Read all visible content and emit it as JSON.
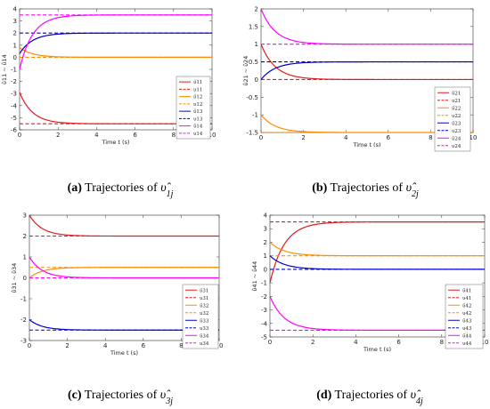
{
  "colors": {
    "c1": "#e41a1c",
    "c2": "#ff8c00",
    "c3": "#0000cd",
    "c4": "#ff00ff"
  },
  "chart_data": [
    {
      "type": "line",
      "caption": "(a) Trajectories of υ̂1j",
      "caption_tag": "(a)",
      "caption_text": " Trajectories of ",
      "caption_sym": "υ̂",
      "caption_sub": "1j",
      "xlabel": "Time t (s)",
      "ylabel": "υ̂11 ~ υ̂14",
      "xlim": [
        0,
        10
      ],
      "ylim": [
        -6,
        4
      ],
      "xticks": [
        "0",
        "2",
        "4",
        "6",
        "8",
        "10"
      ],
      "yticks": [
        "-6",
        "-5",
        "-4",
        "-3",
        "-2",
        "-1",
        "0",
        "1",
        "2",
        "3",
        "4"
      ],
      "legend_position": "center-right",
      "series": [
        {
          "name": "υ̂11",
          "color": "c1",
          "dashed": false,
          "start": -2.9,
          "final": -5.5
        },
        {
          "name": "υ11",
          "color": "c1",
          "dashed": true,
          "value": -5.5
        },
        {
          "name": "υ̂12",
          "color": "c2",
          "dashed": false,
          "start": 0.8,
          "final": 0
        },
        {
          "name": "υ12",
          "color": "c2",
          "dashed": true,
          "value": 0
        },
        {
          "name": "υ̂13",
          "color": "c3",
          "dashed": false,
          "start": 0.3,
          "final": 2
        },
        {
          "name": "υ13",
          "color": "c3",
          "dashed": true,
          "value": 2
        },
        {
          "name": "υ̂14",
          "color": "c4",
          "dashed": false,
          "start": -1,
          "final": 3.5
        },
        {
          "name": "υ14",
          "color": "c4",
          "dashed": true,
          "value": 3.5
        }
      ]
    },
    {
      "type": "line",
      "caption": "(b) Trajectories of υ̂2j",
      "caption_tag": "(b)",
      "caption_text": " Trajectories of ",
      "caption_sym": "υ̂",
      "caption_sub": "2j",
      "xlabel": "Time t (s)",
      "ylabel": "υ̂21 ~ υ̂24",
      "xlim": [
        0,
        10
      ],
      "ylim": [
        -1.5,
        2
      ],
      "xticks": [
        "0",
        "2",
        "4",
        "6",
        "8",
        "10"
      ],
      "yticks": [
        "-1.5",
        "-1",
        "-0.5",
        "0",
        "0.5",
        "1",
        "1.5",
        "2"
      ],
      "legend_position": "right",
      "series": [
        {
          "name": "υ̂21",
          "color": "c1",
          "dashed": false,
          "start": 1,
          "final": 0
        },
        {
          "name": "υ21",
          "color": "c1",
          "dashed": true,
          "value": 0
        },
        {
          "name": "υ̂22",
          "color": "c2",
          "dashed": false,
          "start": -1,
          "final": -1.5
        },
        {
          "name": "υ22",
          "color": "c2",
          "dashed": true,
          "value": -1.5
        },
        {
          "name": "υ̂23",
          "color": "c3",
          "dashed": false,
          "start": 0,
          "final": 0.5
        },
        {
          "name": "υ23",
          "color": "c3",
          "dashed": true,
          "value": 0.5
        },
        {
          "name": "υ̂24",
          "color": "c4",
          "dashed": false,
          "start": 2,
          "final": 1
        },
        {
          "name": "υ24",
          "color": "c4",
          "dashed": true,
          "value": 1
        }
      ]
    },
    {
      "type": "line",
      "caption": "(c) Trajectories of υ̂3j",
      "caption_tag": "(c)",
      "caption_text": " Trajectories of ",
      "caption_sym": "υ̂",
      "caption_sub": "3j",
      "xlabel": "Time t (s)",
      "ylabel": "υ̂31 ~ υ̂34",
      "xlim": [
        0,
        10
      ],
      "ylim": [
        -3,
        3
      ],
      "xticks": [
        "0",
        "2",
        "4",
        "6",
        "8",
        "10"
      ],
      "yticks": [
        "-3",
        "-2",
        "-1",
        "0",
        "1",
        "2",
        "3"
      ],
      "legend_position": "right",
      "series": [
        {
          "name": "υ̂31",
          "color": "c1",
          "dashed": false,
          "start": 3,
          "final": 2
        },
        {
          "name": "υ31",
          "color": "c1",
          "dashed": true,
          "value": 2
        },
        {
          "name": "υ̂32",
          "color": "c2",
          "dashed": false,
          "start": 0,
          "final": 0.5
        },
        {
          "name": "υ32",
          "color": "c2",
          "dashed": true,
          "value": 0.5
        },
        {
          "name": "υ̂33",
          "color": "c3",
          "dashed": false,
          "start": -2,
          "final": -2.5
        },
        {
          "name": "υ33",
          "color": "c3",
          "dashed": true,
          "value": -2.5
        },
        {
          "name": "υ̂34",
          "color": "c4",
          "dashed": false,
          "start": 1,
          "final": 0
        },
        {
          "name": "υ34",
          "color": "c4",
          "dashed": true,
          "value": 0
        }
      ]
    },
    {
      "type": "line",
      "caption": "(d) Trajectories of υ̂4j",
      "caption_tag": "(d)",
      "caption_text": " Trajectories of ",
      "caption_sym": "υ̂",
      "caption_sub": "4j",
      "xlabel": "Time t (s)",
      "ylabel": "υ̂41 ~ υ̂44",
      "xlim": [
        0,
        10
      ],
      "ylim": [
        -5,
        4
      ],
      "xticks": [
        "0",
        "2",
        "4",
        "6",
        "8",
        "10"
      ],
      "yticks": [
        "-5",
        "-4",
        "-3",
        "-2",
        "-1",
        "0",
        "1",
        "2",
        "3",
        "4"
      ],
      "legend_position": "right",
      "series": [
        {
          "name": "υ̂41",
          "color": "c1",
          "dashed": false,
          "start": -1,
          "final": 3.5
        },
        {
          "name": "υ41",
          "color": "c1",
          "dashed": true,
          "value": 3.5
        },
        {
          "name": "υ̂42",
          "color": "c2",
          "dashed": false,
          "start": 2,
          "final": 1
        },
        {
          "name": "υ42",
          "color": "c2",
          "dashed": true,
          "value": 1
        },
        {
          "name": "υ̂43",
          "color": "c3",
          "dashed": false,
          "start": 1,
          "final": 0
        },
        {
          "name": "υ43",
          "color": "c3",
          "dashed": true,
          "value": 0
        },
        {
          "name": "υ̂44",
          "color": "c4",
          "dashed": false,
          "start": -2,
          "final": -4.5
        },
        {
          "name": "υ44",
          "color": "c4",
          "dashed": true,
          "value": -4.5
        }
      ]
    }
  ]
}
